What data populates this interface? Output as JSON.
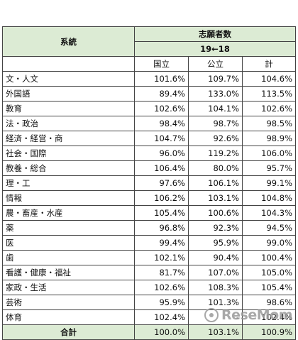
{
  "table": {
    "header": {
      "category_label": "系統",
      "group_label": "志願者数",
      "period_label": "19←18",
      "col_national": "国立",
      "col_public": "公立",
      "col_total": "計"
    },
    "rows": [
      {
        "category": "文・人文",
        "national": "101.6%",
        "public": "109.7%",
        "total": "104.6%"
      },
      {
        "category": "外国語",
        "national": "89.4%",
        "public": "133.0%",
        "total": "113.5%"
      },
      {
        "category": "教育",
        "national": "102.6%",
        "public": "104.1%",
        "total": "102.6%"
      },
      {
        "category": "法・政治",
        "national": "98.4%",
        "public": "98.7%",
        "total": "98.5%"
      },
      {
        "category": "経済・経営・商",
        "national": "104.7%",
        "public": "92.6%",
        "total": "98.9%"
      },
      {
        "category": "社会・国際",
        "national": "96.0%",
        "public": "119.2%",
        "total": "106.0%"
      },
      {
        "category": "教養・総合",
        "national": "106.4%",
        "public": "80.0%",
        "total": "95.7%"
      },
      {
        "category": "理・工",
        "national": "97.6%",
        "public": "106.1%",
        "total": "99.1%"
      },
      {
        "category": "情報",
        "national": "106.2%",
        "public": "103.1%",
        "total": "104.8%"
      },
      {
        "category": "農・畜産・水産",
        "national": "105.4%",
        "public": "100.6%",
        "total": "104.3%"
      },
      {
        "category": "薬",
        "national": "96.8%",
        "public": "92.3%",
        "total": "94.5%"
      },
      {
        "category": "医",
        "national": "99.4%",
        "public": "95.9%",
        "total": "99.0%"
      },
      {
        "category": "歯",
        "national": "102.1%",
        "public": "90.4%",
        "total": "100.4%"
      },
      {
        "category": "看護・健康・福祉",
        "national": "81.7%",
        "public": "107.0%",
        "total": "105.0%"
      },
      {
        "category": "家政・生活",
        "national": "102.6%",
        "public": "108.3%",
        "total": "105.4%"
      },
      {
        "category": "芸術",
        "national": "95.9%",
        "public": "101.3%",
        "total": "98.6%"
      },
      {
        "category": "体育",
        "national": "102.4%",
        "public": "-",
        "total": "102.4%"
      }
    ],
    "total_row": {
      "label": "合計",
      "national": "100.0%",
      "public": "103.1%",
      "total": "100.9%"
    }
  },
  "watermark": {
    "text": "ReseMom"
  },
  "colors": {
    "header_bg": "#dcebd4",
    "border": "#444444"
  }
}
